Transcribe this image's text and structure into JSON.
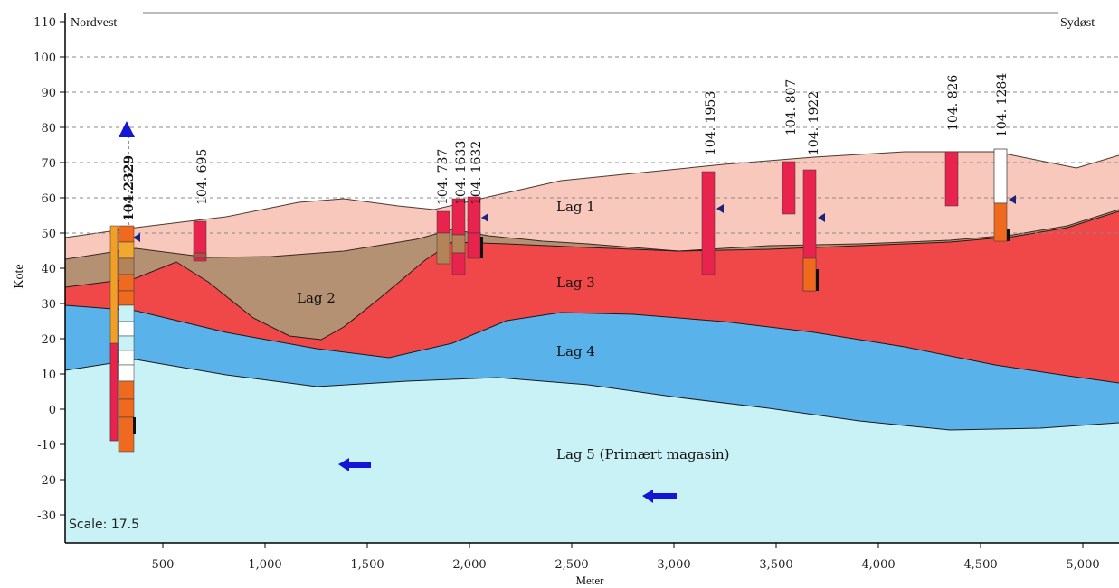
{
  "labels": {
    "northwest": "Nordvest",
    "southeast": "Sydøst",
    "y_axis": "Kote",
    "x_axis": "Meter",
    "scale": "Scale: 17.5"
  },
  "y_ticks": [
    "110",
    "100",
    "90",
    "80",
    "70",
    "60",
    "50",
    "40",
    "30",
    "20",
    "10",
    "0",
    "-10",
    "-20",
    "-30"
  ],
  "x_ticks": [
    "500",
    "1,000",
    "1,500",
    "2,000",
    "2,500",
    "3,000",
    "3,500",
    "4,000",
    "4,500",
    "5,000"
  ],
  "layers": [
    {
      "id": "lag1",
      "label": "Lag 1",
      "color": "#f7c8bb"
    },
    {
      "id": "lag2",
      "label": "Lag 2",
      "color": "#b59173"
    },
    {
      "id": "lag3",
      "label": "Lag 3",
      "color": "#f04848"
    },
    {
      "id": "lag4",
      "label": "Lag 4",
      "color": "#5ab2ea"
    },
    {
      "id": "lag5",
      "label": "Lag 5 (Primært magasin)",
      "color": "#c8f2f6"
    }
  ],
  "boreholes": [
    "104.2329",
    "104. 695",
    "104. 737",
    "104. 1633",
    "104. 1632",
    "104. 1953",
    "104. 807",
    "104. 1922",
    "104. 826",
    "104. 1284"
  ],
  "flow_direction": "west",
  "colors": {
    "borehole_red": "#e8244e",
    "borehole_orange": "#ef6a1e",
    "water_marker": "#1a237e",
    "flow_arrow": "#1515d6"
  }
}
